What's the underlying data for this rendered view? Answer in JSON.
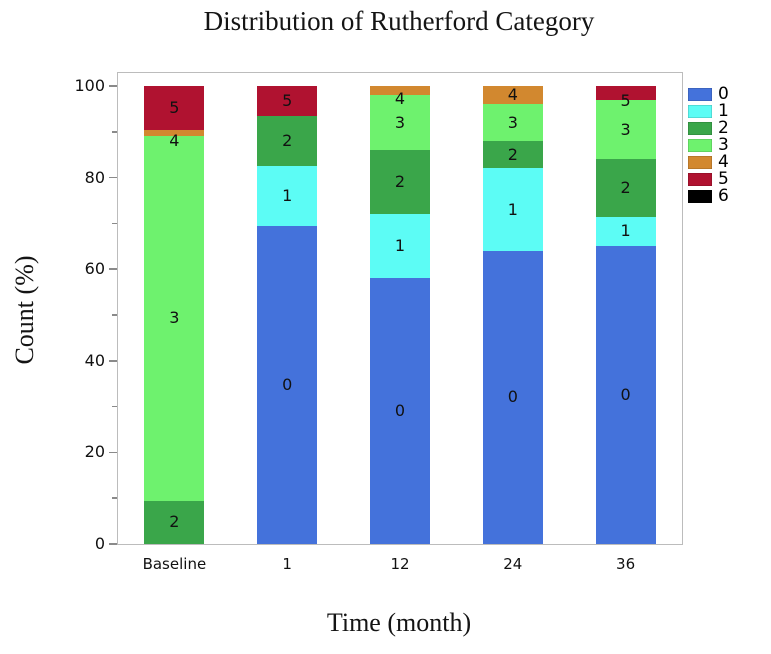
{
  "title": "Distribution of Rutherford Category",
  "chart_data": {
    "type": "bar",
    "stacked": true,
    "title": "Distribution of Rutherford Category",
    "xlabel": "Time (month)",
    "ylabel": "Count (%)",
    "categories": [
      "Baseline",
      "1",
      "12",
      "24",
      "36"
    ],
    "series": [
      {
        "name": "0",
        "color": "#4472DB",
        "values": [
          0,
          69.5,
          58,
          64,
          65
        ]
      },
      {
        "name": "1",
        "color": "#5CFCF5",
        "values": [
          0,
          13,
          14,
          18,
          6.5
        ]
      },
      {
        "name": "2",
        "color": "#3AA64A",
        "values": [
          9.5,
          11,
          14,
          6,
          12.5
        ]
      },
      {
        "name": "3",
        "color": "#6EF26E",
        "values": [
          79.5,
          0,
          12,
          8,
          13
        ]
      },
      {
        "name": "4",
        "color": "#D2882F",
        "values": [
          1.5,
          0,
          2,
          4,
          0
        ]
      },
      {
        "name": "5",
        "color": "#B01230",
        "values": [
          9.5,
          6.5,
          0,
          0,
          3
        ]
      },
      {
        "name": "6",
        "color": "#000000",
        "values": [
          0,
          0,
          0,
          0,
          0
        ]
      }
    ],
    "ylim": [
      0,
      100
    ],
    "yticks": [
      0,
      20,
      40,
      60,
      80,
      100
    ],
    "yticks_minor": [
      10,
      30,
      50,
      70,
      90
    ],
    "legend_position": "right",
    "grid": false,
    "segment_labels": true
  }
}
